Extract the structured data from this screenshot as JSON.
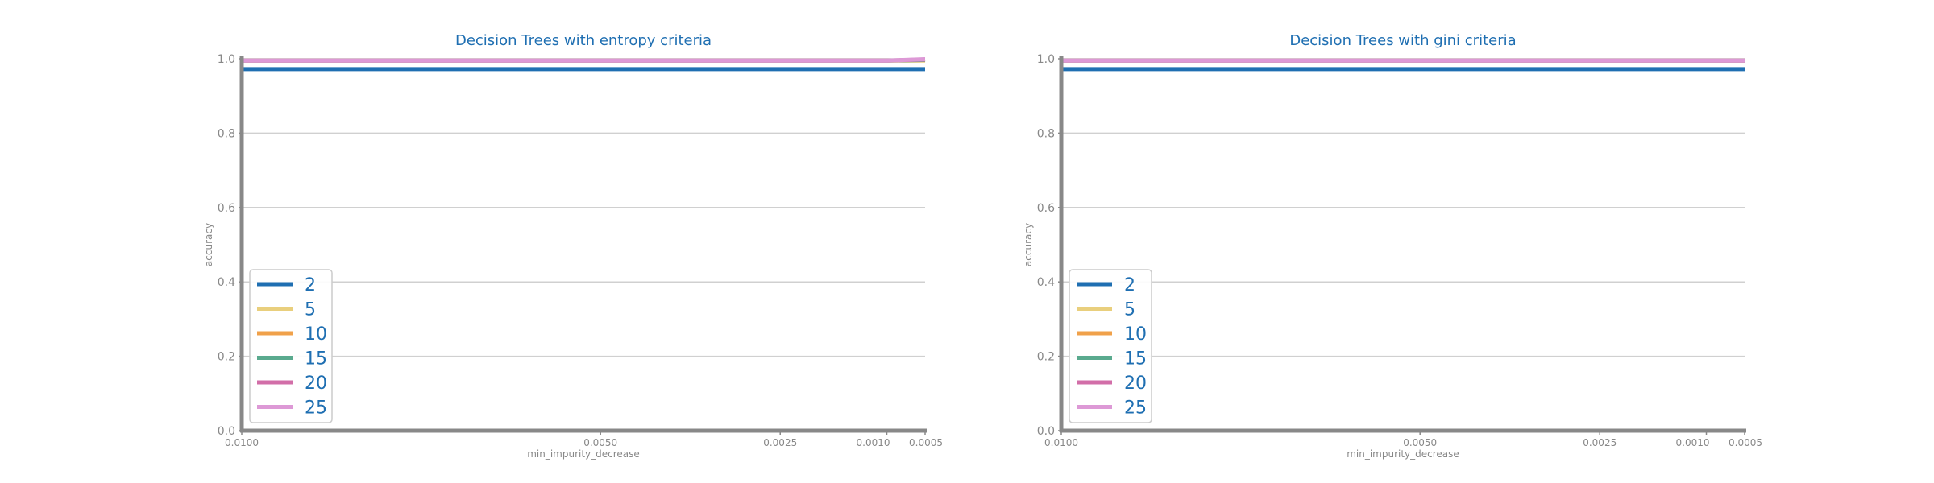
{
  "chart_data": [
    {
      "type": "line",
      "title": "Decision Trees with entropy criteria",
      "xlabel": "min_impurity_decrease",
      "ylabel": "accuracy",
      "x_ticks": [
        "0.0100",
        "0.0050",
        "0.0025",
        "0.0010",
        "0.0005"
      ],
      "x_values": [
        0.01,
        0.005,
        0.0025,
        0.001,
        0.0005
      ],
      "x_axis": "reversed",
      "y_ticks": [
        "0.0",
        "0.2",
        "0.4",
        "0.6",
        "0.8",
        "1.0"
      ],
      "ylim": [
        0,
        1.0
      ],
      "grid": "horizontal",
      "legend": "lower-left",
      "series": [
        {
          "name": "2",
          "color": "#1f6fb2",
          "values": [
            0.972,
            0.972,
            0.972,
            0.972,
            0.972
          ]
        },
        {
          "name": "5",
          "color": "#e9cf7d",
          "values": [
            0.995,
            0.995,
            0.995,
            0.995,
            0.995
          ]
        },
        {
          "name": "10",
          "color": "#f0a14a",
          "values": [
            0.995,
            0.995,
            0.995,
            0.995,
            0.997
          ]
        },
        {
          "name": "15",
          "color": "#5aaa8e",
          "values": [
            0.995,
            0.995,
            0.995,
            0.995,
            0.997
          ]
        },
        {
          "name": "20",
          "color": "#d26ea8",
          "values": [
            0.995,
            0.995,
            0.995,
            0.995,
            0.998
          ]
        },
        {
          "name": "25",
          "color": "#dd99d6",
          "values": [
            0.995,
            0.995,
            0.995,
            0.995,
            0.999
          ]
        }
      ]
    },
    {
      "type": "line",
      "title": "Decision Trees with gini criteria",
      "xlabel": "min_impurity_decrease",
      "ylabel": "accuracy",
      "x_ticks": [
        "0.0100",
        "0.0050",
        "0.0025",
        "0.0010",
        "0.0005"
      ],
      "x_values": [
        0.01,
        0.005,
        0.0025,
        0.001,
        0.0005
      ],
      "x_axis": "reversed",
      "y_ticks": [
        "0.0",
        "0.2",
        "0.4",
        "0.6",
        "0.8",
        "1.0"
      ],
      "ylim": [
        0,
        1.0
      ],
      "grid": "horizontal",
      "legend": "lower-left",
      "series": [
        {
          "name": "2",
          "color": "#1f6fb2",
          "values": [
            0.972,
            0.972,
            0.972,
            0.972,
            0.972
          ]
        },
        {
          "name": "5",
          "color": "#e9cf7d",
          "values": [
            0.995,
            0.995,
            0.995,
            0.995,
            0.995
          ]
        },
        {
          "name": "10",
          "color": "#f0a14a",
          "values": [
            0.995,
            0.995,
            0.995,
            0.995,
            0.995
          ]
        },
        {
          "name": "15",
          "color": "#5aaa8e",
          "values": [
            0.995,
            0.995,
            0.995,
            0.995,
            0.995
          ]
        },
        {
          "name": "20",
          "color": "#d26ea8",
          "values": [
            0.995,
            0.995,
            0.995,
            0.995,
            0.995
          ]
        },
        {
          "name": "25",
          "color": "#dd99d6",
          "values": [
            0.995,
            0.995,
            0.995,
            0.995,
            0.995
          ]
        }
      ]
    }
  ]
}
